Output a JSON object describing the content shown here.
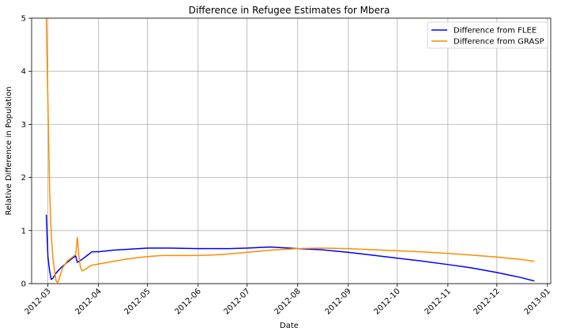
{
  "chart_data": {
    "type": "line",
    "title": "Difference in Refugee Estimates for Mbera",
    "xlabel": "Date",
    "ylabel": "Relative Difference in Population",
    "x_ticks": [
      "2012-03",
      "2012-04",
      "2012-05",
      "2012-06",
      "2012-07",
      "2012-08",
      "2012-09",
      "2012-10",
      "2012-11",
      "2012-12",
      "2013-01"
    ],
    "y_ticks": [
      "0",
      "1",
      "2",
      "3",
      "4",
      "5"
    ],
    "xlim": [
      "2012-02-20",
      "2013-01-03"
    ],
    "ylim": [
      0,
      5
    ],
    "grid": true,
    "legend_position": "top-right",
    "series": [
      {
        "name": "Difference from FLEE",
        "color": "#0000ff",
        "points": [
          [
            "2012-02-29",
            1.3
          ],
          [
            "2012-03-01",
            0.5
          ],
          [
            "2012-03-02",
            0.25
          ],
          [
            "2012-03-03",
            0.08
          ],
          [
            "2012-03-04",
            0.1
          ],
          [
            "2012-03-06",
            0.2
          ],
          [
            "2012-03-09",
            0.3
          ],
          [
            "2012-03-12",
            0.38
          ],
          [
            "2012-03-16",
            0.48
          ],
          [
            "2012-03-18",
            0.52
          ],
          [
            "2012-03-19",
            0.4
          ],
          [
            "2012-03-22",
            0.46
          ],
          [
            "2012-03-25",
            0.53
          ],
          [
            "2012-03-28",
            0.6
          ],
          [
            "2012-04-01",
            0.6
          ],
          [
            "2012-04-10",
            0.63
          ],
          [
            "2012-04-20",
            0.65
          ],
          [
            "2012-05-01",
            0.67
          ],
          [
            "2012-05-15",
            0.67
          ],
          [
            "2012-06-01",
            0.66
          ],
          [
            "2012-06-20",
            0.66
          ],
          [
            "2012-07-01",
            0.67
          ],
          [
            "2012-07-15",
            0.69
          ],
          [
            "2012-08-01",
            0.66
          ],
          [
            "2012-08-15",
            0.64
          ],
          [
            "2012-09-01",
            0.59
          ],
          [
            "2012-09-15",
            0.54
          ],
          [
            "2012-10-01",
            0.48
          ],
          [
            "2012-10-15",
            0.43
          ],
          [
            "2012-11-01",
            0.36
          ],
          [
            "2012-11-15",
            0.3
          ],
          [
            "2012-12-01",
            0.21
          ],
          [
            "2012-12-15",
            0.12
          ],
          [
            "2012-12-24",
            0.05
          ]
        ]
      },
      {
        "name": "Difference from GRASP",
        "color": "#ff8c00",
        "points": [
          [
            "2012-02-29",
            5.0
          ],
          [
            "2012-03-01",
            3.4
          ],
          [
            "2012-03-02",
            1.8
          ],
          [
            "2012-03-03",
            0.95
          ],
          [
            "2012-03-04",
            0.5
          ],
          [
            "2012-03-05",
            0.25
          ],
          [
            "2012-03-06",
            0.05
          ],
          [
            "2012-03-07",
            0.02
          ],
          [
            "2012-03-08",
            0.1
          ],
          [
            "2012-03-10",
            0.3
          ],
          [
            "2012-03-13",
            0.43
          ],
          [
            "2012-03-16",
            0.5
          ],
          [
            "2012-03-18",
            0.55
          ],
          [
            "2012-03-19",
            0.87
          ],
          [
            "2012-03-20",
            0.5
          ],
          [
            "2012-03-21",
            0.3
          ],
          [
            "2012-03-22",
            0.24
          ],
          [
            "2012-03-24",
            0.27
          ],
          [
            "2012-03-27",
            0.34
          ],
          [
            "2012-04-01",
            0.37
          ],
          [
            "2012-04-10",
            0.42
          ],
          [
            "2012-04-20",
            0.47
          ],
          [
            "2012-05-01",
            0.51
          ],
          [
            "2012-05-10",
            0.53
          ],
          [
            "2012-05-20",
            0.53
          ],
          [
            "2012-06-01",
            0.53
          ],
          [
            "2012-06-10",
            0.54
          ],
          [
            "2012-06-20",
            0.56
          ],
          [
            "2012-07-01",
            0.59
          ],
          [
            "2012-07-15",
            0.63
          ],
          [
            "2012-08-01",
            0.66
          ],
          [
            "2012-08-15",
            0.67
          ],
          [
            "2012-09-01",
            0.66
          ],
          [
            "2012-09-15",
            0.64
          ],
          [
            "2012-10-01",
            0.62
          ],
          [
            "2012-10-15",
            0.6
          ],
          [
            "2012-11-01",
            0.57
          ],
          [
            "2012-11-15",
            0.54
          ],
          [
            "2012-12-01",
            0.5
          ],
          [
            "2012-12-15",
            0.46
          ],
          [
            "2012-12-24",
            0.42
          ]
        ]
      }
    ]
  }
}
